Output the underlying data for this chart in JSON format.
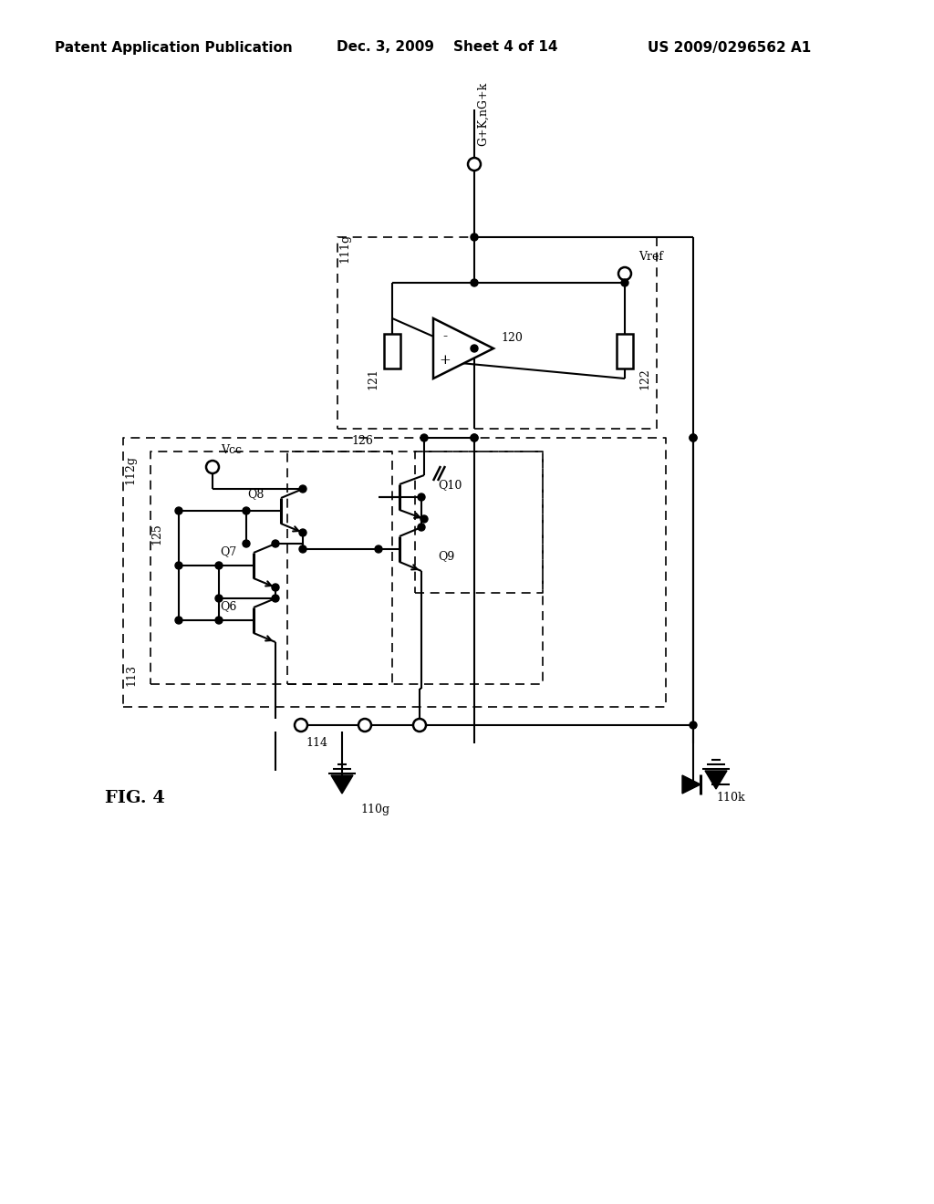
{
  "header_left": "Patent Application Publication",
  "header_middle": "Dec. 3, 2009    Sheet 4 of 14",
  "header_right": "US 2009/0296562 A1",
  "figure_label": "FIG. 4",
  "background": "#ffffff",
  "line_color": "#000000"
}
